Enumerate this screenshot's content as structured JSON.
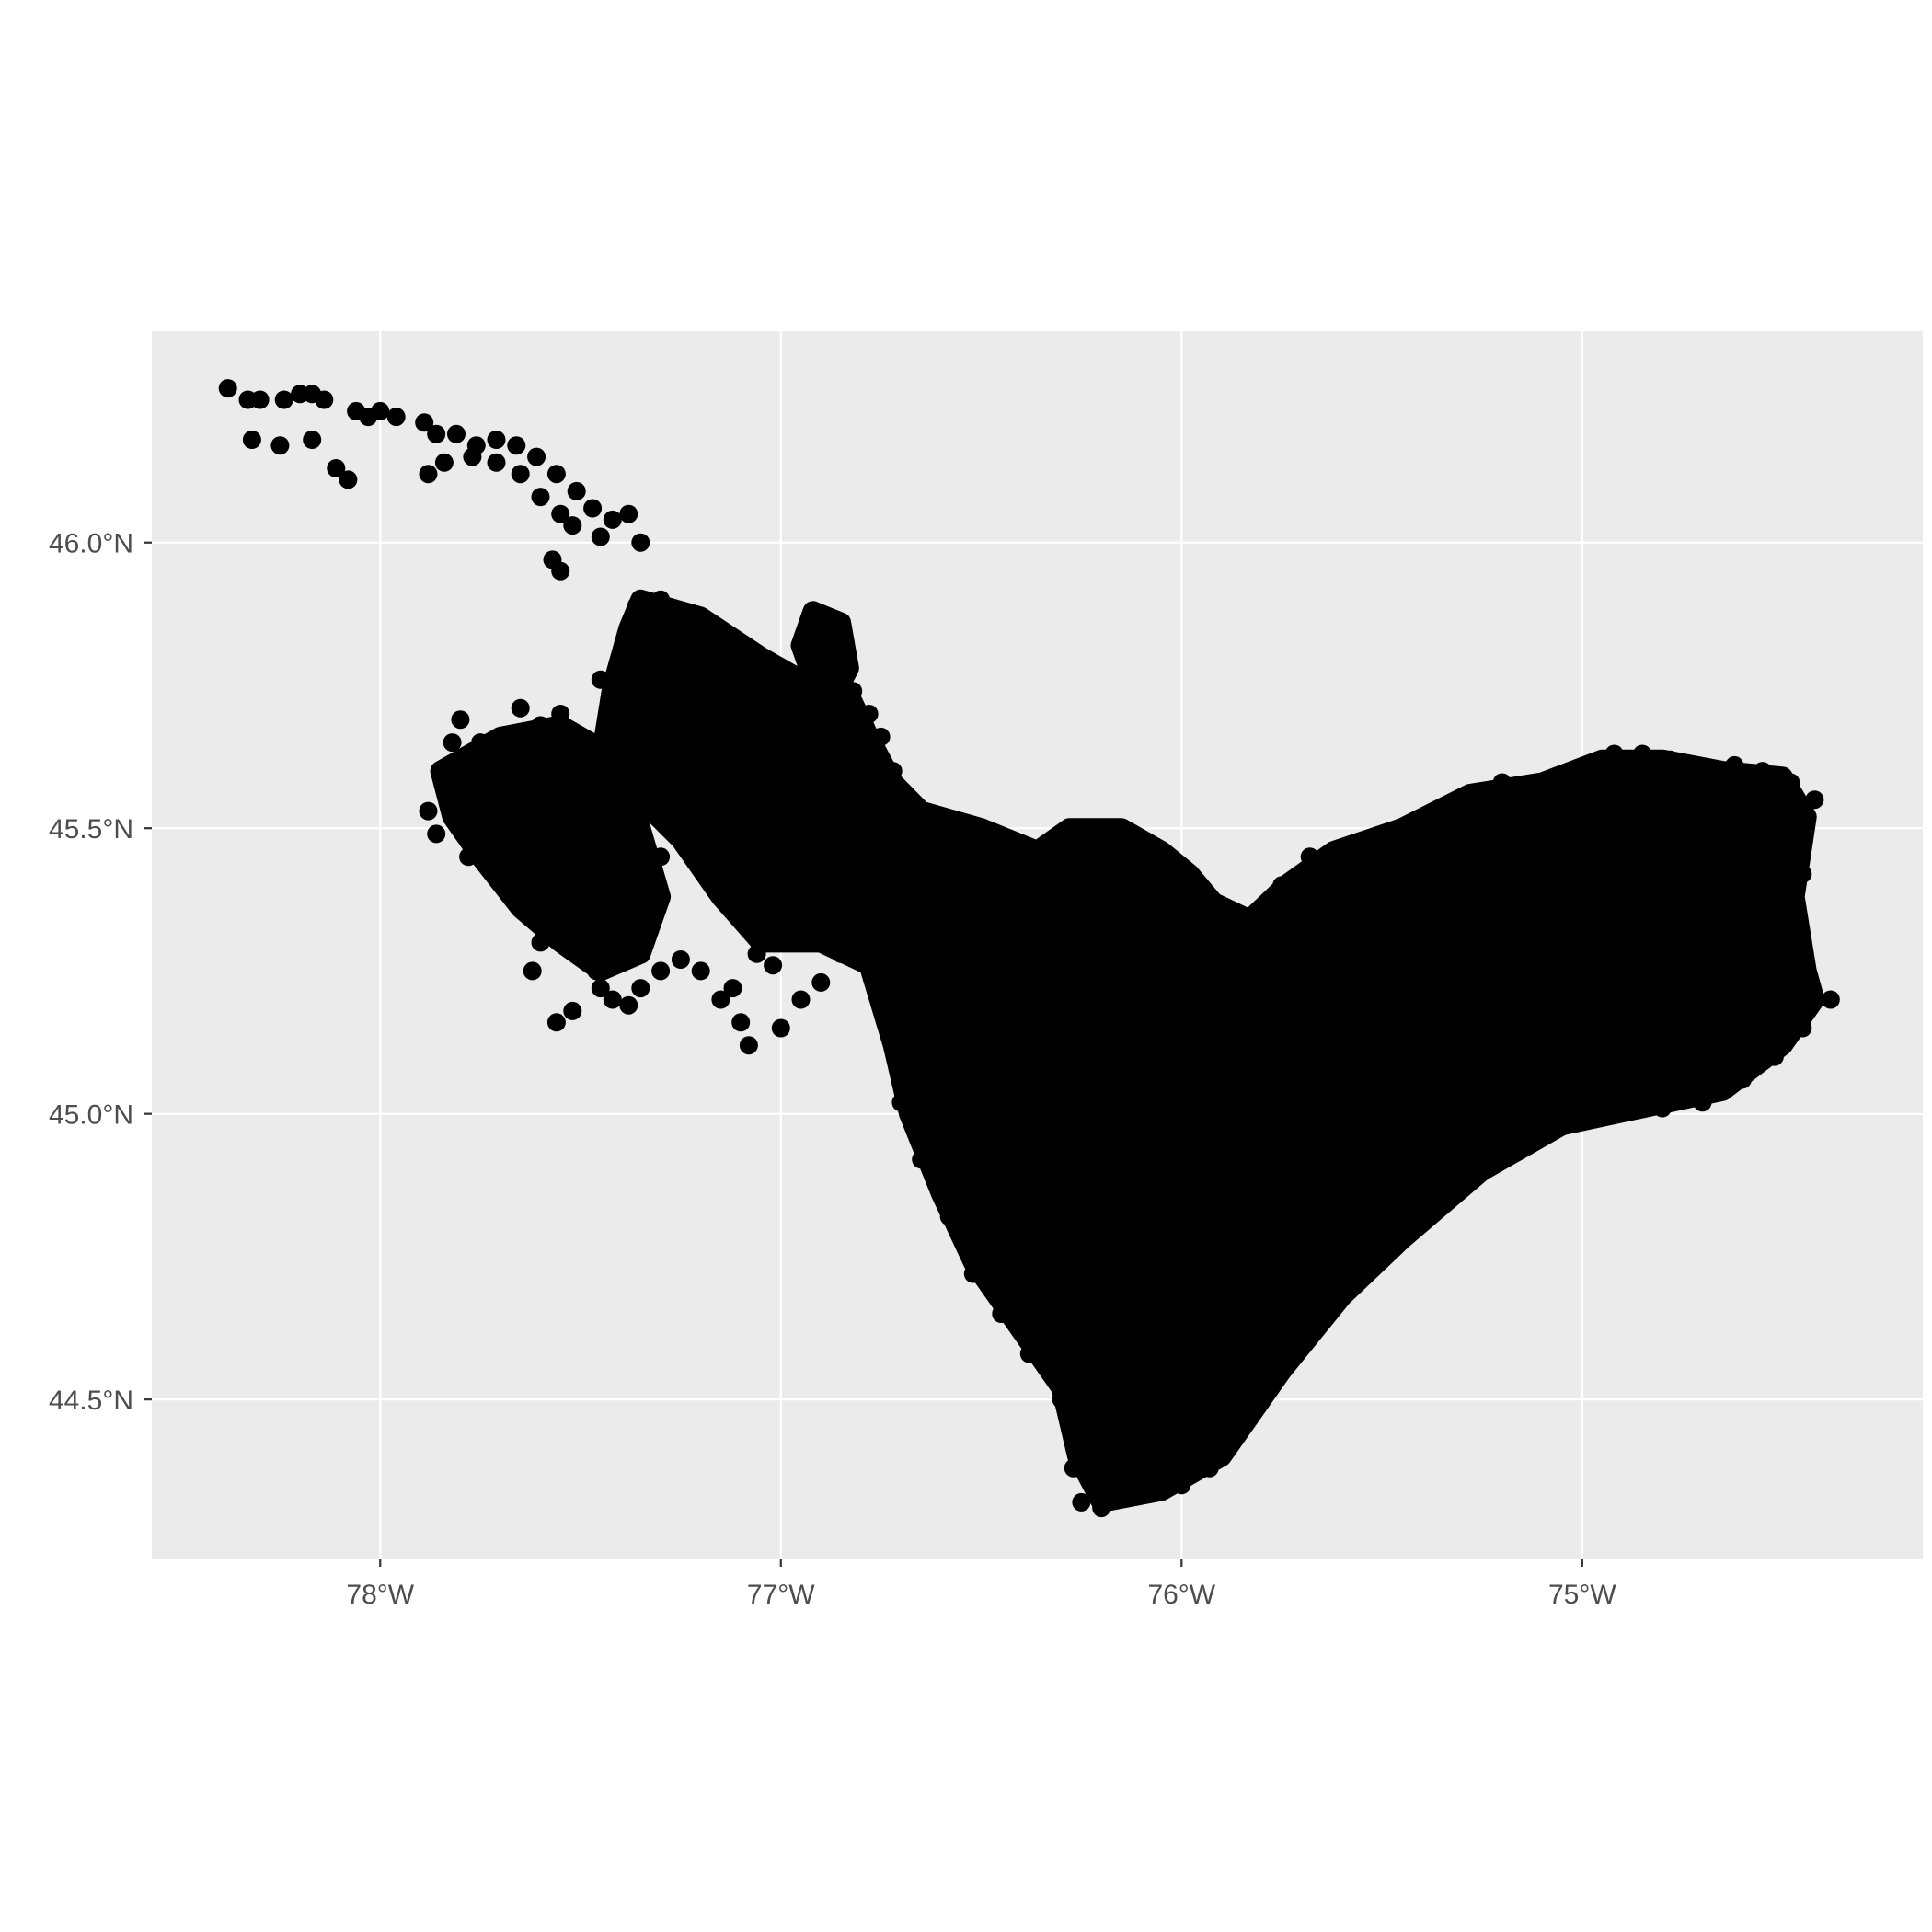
{
  "chart_data": {
    "type": "scatter",
    "title": "",
    "xlabel": "",
    "ylabel": "",
    "xlim": [
      -78.57,
      -74.15
    ],
    "ylim": [
      44.22,
      46.37
    ],
    "grid": true,
    "legend": "none",
    "colors": {
      "panel": "#ebebeb",
      "grid": "#ffffff",
      "points": "#000000",
      "axis_text": "#4d4d4d",
      "axis_ticks": "#333333"
    },
    "x_ticks": [
      {
        "value": -78,
        "label": "78°W"
      },
      {
        "value": -77,
        "label": "77°W"
      },
      {
        "value": -76,
        "label": "76°W"
      },
      {
        "value": -75,
        "label": "75°W"
      }
    ],
    "y_ticks": [
      {
        "value": 44.5,
        "label": "44.5°N"
      },
      {
        "value": 45.0,
        "label": "45.0°N"
      },
      {
        "value": 45.5,
        "label": "45.5°N"
      },
      {
        "value": 46.0,
        "label": "46.0°N"
      }
    ],
    "points": [
      [
        -78.38,
        46.27
      ],
      [
        -78.33,
        46.25
      ],
      [
        -78.3,
        46.25
      ],
      [
        -78.24,
        46.25
      ],
      [
        -78.2,
        46.26
      ],
      [
        -78.17,
        46.26
      ],
      [
        -78.14,
        46.25
      ],
      [
        -78.06,
        46.23
      ],
      [
        -78.03,
        46.22
      ],
      [
        -78.0,
        46.23
      ],
      [
        -77.96,
        46.22
      ],
      [
        -77.89,
        46.21
      ],
      [
        -77.86,
        46.19
      ],
      [
        -77.81,
        46.19
      ],
      [
        -77.76,
        46.17
      ],
      [
        -77.71,
        46.18
      ],
      [
        -77.66,
        46.17
      ],
      [
        -77.61,
        46.15
      ],
      [
        -77.56,
        46.12
      ],
      [
        -77.51,
        46.09
      ],
      [
        -77.47,
        46.06
      ],
      [
        -77.42,
        46.04
      ],
      [
        -77.38,
        46.05
      ],
      [
        -77.35,
        46.0
      ],
      [
        -78.32,
        46.18
      ],
      [
        -78.25,
        46.17
      ],
      [
        -78.17,
        46.18
      ],
      [
        -78.11,
        46.13
      ],
      [
        -78.08,
        46.11
      ],
      [
        -77.88,
        46.12
      ],
      [
        -77.84,
        46.14
      ],
      [
        -77.77,
        46.15
      ],
      [
        -77.71,
        46.14
      ],
      [
        -77.65,
        46.12
      ],
      [
        -77.6,
        46.08
      ],
      [
        -77.55,
        46.05
      ],
      [
        -77.52,
        46.03
      ],
      [
        -77.45,
        46.01
      ],
      [
        -77.57,
        45.97
      ],
      [
        -77.55,
        45.95
      ],
      [
        -77.36,
        45.89
      ],
      [
        -77.3,
        45.9
      ],
      [
        -77.24,
        45.86
      ],
      [
        -77.17,
        45.83
      ],
      [
        -77.1,
        45.8
      ],
      [
        -77.05,
        45.77
      ],
      [
        -76.98,
        45.75
      ],
      [
        -76.92,
        45.88
      ],
      [
        -76.88,
        45.86
      ],
      [
        -76.85,
        45.84
      ],
      [
        -76.84,
        45.8
      ],
      [
        -76.82,
        45.74
      ],
      [
        -76.78,
        45.7
      ],
      [
        -76.75,
        45.66
      ],
      [
        -76.72,
        45.6
      ],
      [
        -76.7,
        45.56
      ],
      [
        -76.62,
        45.52
      ],
      [
        -76.53,
        45.5
      ],
      [
        -76.45,
        45.48
      ],
      [
        -76.38,
        45.45
      ],
      [
        -76.3,
        45.43
      ],
      [
        -76.25,
        45.5
      ],
      [
        -76.18,
        45.5
      ],
      [
        -76.1,
        45.48
      ],
      [
        -76.05,
        45.46
      ],
      [
        -76.0,
        45.43
      ],
      [
        -75.95,
        45.38
      ],
      [
        -75.9,
        45.35
      ],
      [
        -75.82,
        45.34
      ],
      [
        -75.75,
        45.4
      ],
      [
        -75.68,
        45.45
      ],
      [
        -75.6,
        45.46
      ],
      [
        -75.52,
        45.48
      ],
      [
        -75.45,
        45.5
      ],
      [
        -75.38,
        45.52
      ],
      [
        -75.28,
        45.55
      ],
      [
        -75.2,
        45.58
      ],
      [
        -75.1,
        45.58
      ],
      [
        -75.0,
        45.6
      ],
      [
        -74.92,
        45.63
      ],
      [
        -74.85,
        45.63
      ],
      [
        -74.78,
        45.62
      ],
      [
        -74.7,
        45.6
      ],
      [
        -74.62,
        45.61
      ],
      [
        -74.55,
        45.6
      ],
      [
        -74.48,
        45.58
      ],
      [
        -74.42,
        45.55
      ],
      [
        -74.45,
        45.42
      ],
      [
        -74.48,
        45.32
      ],
      [
        -74.45,
        45.25
      ],
      [
        -74.38,
        45.2
      ],
      [
        -74.45,
        45.15
      ],
      [
        -74.52,
        45.1
      ],
      [
        -74.6,
        45.06
      ],
      [
        -74.7,
        45.02
      ],
      [
        -74.8,
        45.01
      ],
      [
        -74.9,
        45.02
      ],
      [
        -75.0,
        45.0
      ],
      [
        -75.1,
        44.96
      ],
      [
        -75.2,
        44.92
      ],
      [
        -75.3,
        44.88
      ],
      [
        -75.4,
        44.82
      ],
      [
        -75.5,
        44.75
      ],
      [
        -75.58,
        44.7
      ],
      [
        -75.65,
        44.64
      ],
      [
        -75.72,
        44.58
      ],
      [
        -75.8,
        44.5
      ],
      [
        -75.87,
        44.43
      ],
      [
        -75.93,
        44.38
      ],
      [
        -76.0,
        44.35
      ],
      [
        -76.07,
        44.34
      ],
      [
        -76.14,
        44.33
      ],
      [
        -76.2,
        44.31
      ],
      [
        -76.25,
        44.32
      ],
      [
        -76.27,
        44.38
      ],
      [
        -76.27,
        44.45
      ],
      [
        -76.3,
        44.52
      ],
      [
        -76.38,
        44.58
      ],
      [
        -76.45,
        44.65
      ],
      [
        -76.52,
        44.72
      ],
      [
        -76.58,
        44.82
      ],
      [
        -76.65,
        44.92
      ],
      [
        -76.7,
        45.02
      ],
      [
        -76.72,
        45.12
      ],
      [
        -76.75,
        45.22
      ],
      [
        -77.88,
        45.53
      ],
      [
        -77.86,
        45.49
      ],
      [
        -77.8,
        45.51
      ],
      [
        -77.78,
        45.45
      ],
      [
        -77.75,
        45.47
      ],
      [
        -77.82,
        45.65
      ],
      [
        -77.8,
        45.69
      ],
      [
        -77.75,
        45.65
      ],
      [
        -77.7,
        45.62
      ],
      [
        -77.65,
        45.71
      ],
      [
        -77.6,
        45.68
      ],
      [
        -77.55,
        45.7
      ],
      [
        -77.52,
        45.66
      ],
      [
        -77.48,
        45.65
      ],
      [
        -77.45,
        45.76
      ],
      [
        -77.42,
        45.72
      ],
      [
        -77.38,
        45.78
      ],
      [
        -77.34,
        45.82
      ],
      [
        -77.3,
        45.85
      ],
      [
        -77.68,
        45.55
      ],
      [
        -77.62,
        45.5
      ],
      [
        -77.58,
        45.45
      ],
      [
        -77.55,
        45.38
      ],
      [
        -77.52,
        45.33
      ],
      [
        -77.5,
        45.28
      ],
      [
        -77.45,
        45.22
      ],
      [
        -77.42,
        45.2
      ],
      [
        -77.38,
        45.19
      ],
      [
        -77.35,
        45.22
      ],
      [
        -77.3,
        45.25
      ],
      [
        -77.25,
        45.27
      ],
      [
        -77.2,
        45.25
      ],
      [
        -77.15,
        45.2
      ],
      [
        -77.1,
        45.16
      ],
      [
        -77.08,
        45.12
      ],
      [
        -77.12,
        45.22
      ],
      [
        -77.06,
        45.28
      ],
      [
        -77.02,
        45.26
      ],
      [
        -77.0,
        45.15
      ],
      [
        -76.95,
        45.2
      ],
      [
        -76.9,
        45.23
      ],
      [
        -76.85,
        45.28
      ],
      [
        -76.8,
        45.3
      ],
      [
        -77.65,
        45.38
      ],
      [
        -77.6,
        45.3
      ],
      [
        -77.62,
        45.25
      ],
      [
        -77.56,
        45.16
      ],
      [
        -77.52,
        45.18
      ],
      [
        -77.46,
        45.25
      ],
      [
        -77.4,
        45.33
      ],
      [
        -77.35,
        45.4
      ],
      [
        -77.3,
        45.45
      ],
      [
        -77.25,
        45.5
      ],
      [
        -77.2,
        45.55
      ],
      [
        -77.15,
        45.6
      ],
      [
        -77.1,
        45.65
      ],
      [
        -77.05,
        45.7
      ],
      [
        -77.0,
        45.68
      ],
      [
        -76.95,
        45.72
      ],
      [
        -76.9,
        45.68
      ],
      [
        -77.45,
        45.5
      ],
      [
        -77.5,
        45.55
      ],
      [
        -77.55,
        45.58
      ],
      [
        -77.4,
        45.58
      ],
      [
        -77.35,
        45.62
      ],
      [
        -77.28,
        45.67
      ],
      [
        -77.22,
        45.72
      ],
      [
        -77.18,
        45.76
      ],
      [
        -77.12,
        45.7
      ],
      [
        -77.08,
        45.6
      ],
      [
        -77.02,
        45.55
      ],
      [
        -76.98,
        45.5
      ],
      [
        -76.92,
        45.45
      ],
      [
        -76.88,
        45.4
      ],
      [
        -76.84,
        45.35
      ],
      [
        -76.78,
        45.4
      ],
      [
        -76.72,
        45.45
      ],
      [
        -76.66,
        45.42
      ],
      [
        -76.6,
        45.38
      ],
      [
        -76.55,
        45.33
      ],
      [
        -76.5,
        45.3
      ],
      [
        -76.45,
        45.27
      ],
      [
        -76.4,
        45.28
      ],
      [
        -76.35,
        45.25
      ],
      [
        -76.62,
        45.15
      ],
      [
        -76.6,
        45.1
      ],
      [
        -76.58,
        45.05
      ],
      [
        -76.62,
        45.0
      ],
      [
        -76.56,
        44.95
      ],
      [
        -76.52,
        44.88
      ],
      [
        -76.5,
        44.8
      ],
      [
        -76.48,
        44.72
      ],
      [
        -76.42,
        44.68
      ],
      [
        -76.36,
        44.6
      ],
      [
        -76.3,
        44.5
      ],
      [
        -76.25,
        44.42
      ],
      [
        -75.5,
        45.35
      ],
      [
        -75.3,
        45.3
      ],
      [
        -75.2,
        45.22
      ],
      [
        -75.0,
        45.2
      ],
      [
        -74.85,
        45.3
      ],
      [
        -74.75,
        45.4
      ],
      [
        -74.65,
        45.5
      ],
      [
        -74.6,
        45.35
      ],
      [
        -74.7,
        45.2
      ],
      [
        -74.9,
        45.1
      ],
      [
        -75.1,
        45.05
      ],
      [
        -75.3,
        45.0
      ],
      [
        -75.5,
        44.95
      ],
      [
        -75.7,
        44.9
      ],
      [
        -75.9,
        44.8
      ],
      [
        -76.1,
        44.7
      ],
      [
        -76.2,
        44.6
      ],
      [
        -76.0,
        44.55
      ],
      [
        -75.85,
        44.65
      ],
      [
        -75.75,
        44.75
      ],
      [
        -75.6,
        44.85
      ],
      [
        -75.45,
        44.9
      ],
      [
        -75.25,
        45.1
      ],
      [
        -75.15,
        45.35
      ],
      [
        -75.05,
        45.45
      ],
      [
        -74.95,
        45.5
      ],
      [
        -75.35,
        45.45
      ],
      [
        -75.55,
        45.4
      ],
      [
        -75.7,
        45.3
      ],
      [
        -75.85,
        45.2
      ],
      [
        -76.0,
        45.1
      ],
      [
        -76.15,
        45.0
      ],
      [
        -76.3,
        44.9
      ],
      [
        -76.4,
        44.8
      ],
      [
        -76.2,
        45.2
      ],
      [
        -76.05,
        45.3
      ],
      [
        -75.95,
        45.0
      ],
      [
        -75.8,
        45.05
      ],
      [
        -75.65,
        45.15
      ],
      [
        -75.4,
        45.2
      ],
      [
        -76.1,
        44.45
      ],
      [
        -76.15,
        44.85
      ],
      [
        -76.25,
        45.1
      ],
      [
        -76.3,
        45.3
      ],
      [
        -75.9,
        44.95
      ],
      [
        -75.7,
        44.6
      ],
      [
        -75.6,
        45.25
      ],
      [
        -75.35,
        45.1
      ],
      [
        -74.8,
        45.15
      ],
      [
        -74.55,
        45.25
      ],
      [
        -74.5,
        45.45
      ],
      [
        -74.6,
        45.55
      ]
    ],
    "fill_regions": [
      [
        [
          -77.35,
          45.9
        ],
        [
          -77.2,
          45.87
        ],
        [
          -77.05,
          45.8
        ],
        [
          -76.95,
          45.76
        ],
        [
          -76.88,
          45.78
        ],
        [
          -76.82,
          45.72
        ],
        [
          -76.78,
          45.66
        ],
        [
          -76.72,
          45.58
        ],
        [
          -76.65,
          45.53
        ],
        [
          -76.5,
          45.5
        ],
        [
          -76.36,
          45.46
        ],
        [
          -76.28,
          45.5
        ],
        [
          -76.15,
          45.5
        ],
        [
          -76.05,
          45.46
        ],
        [
          -75.98,
          45.42
        ],
        [
          -75.92,
          45.37
        ],
        [
          -75.83,
          45.34
        ],
        [
          -75.74,
          45.4
        ],
        [
          -75.62,
          45.46
        ],
        [
          -75.45,
          45.5
        ],
        [
          -75.28,
          45.56
        ],
        [
          -75.1,
          45.58
        ],
        [
          -74.95,
          45.62
        ],
        [
          -74.8,
          45.62
        ],
        [
          -74.65,
          45.6
        ],
        [
          -74.5,
          45.59
        ],
        [
          -74.44,
          45.52
        ],
        [
          -74.47,
          45.38
        ],
        [
          -74.44,
          45.25
        ],
        [
          -74.42,
          45.2
        ],
        [
          -74.5,
          45.12
        ],
        [
          -74.65,
          45.04
        ],
        [
          -74.85,
          45.01
        ],
        [
          -75.05,
          44.98
        ],
        [
          -75.25,
          44.9
        ],
        [
          -75.45,
          44.78
        ],
        [
          -75.6,
          44.68
        ],
        [
          -75.75,
          44.55
        ],
        [
          -75.9,
          44.4
        ],
        [
          -76.05,
          44.34
        ],
        [
          -76.2,
          44.32
        ],
        [
          -76.26,
          44.4
        ],
        [
          -76.3,
          44.52
        ],
        [
          -76.42,
          44.64
        ],
        [
          -76.52,
          44.74
        ],
        [
          -76.6,
          44.86
        ],
        [
          -76.68,
          45.0
        ],
        [
          -76.72,
          45.12
        ],
        [
          -76.78,
          45.26
        ],
        [
          -76.9,
          45.3
        ],
        [
          -77.05,
          45.3
        ],
        [
          -77.15,
          45.38
        ],
        [
          -77.25,
          45.48
        ],
        [
          -77.35,
          45.55
        ],
        [
          -77.45,
          45.62
        ],
        [
          -77.42,
          45.75
        ],
        [
          -77.38,
          45.85
        ]
      ],
      [
        [
          -76.92,
          45.88
        ],
        [
          -76.85,
          45.86
        ],
        [
          -76.83,
          45.78
        ],
        [
          -76.86,
          45.74
        ],
        [
          -76.92,
          45.76
        ],
        [
          -76.95,
          45.82
        ]
      ],
      [
        [
          -77.85,
          45.6
        ],
        [
          -77.7,
          45.66
        ],
        [
          -77.55,
          45.68
        ],
        [
          -77.45,
          45.64
        ],
        [
          -77.35,
          45.5
        ],
        [
          -77.3,
          45.38
        ],
        [
          -77.35,
          45.28
        ],
        [
          -77.45,
          45.25
        ],
        [
          -77.55,
          45.3
        ],
        [
          -77.65,
          45.36
        ],
        [
          -77.75,
          45.45
        ],
        [
          -77.82,
          45.52
        ]
      ]
    ]
  }
}
